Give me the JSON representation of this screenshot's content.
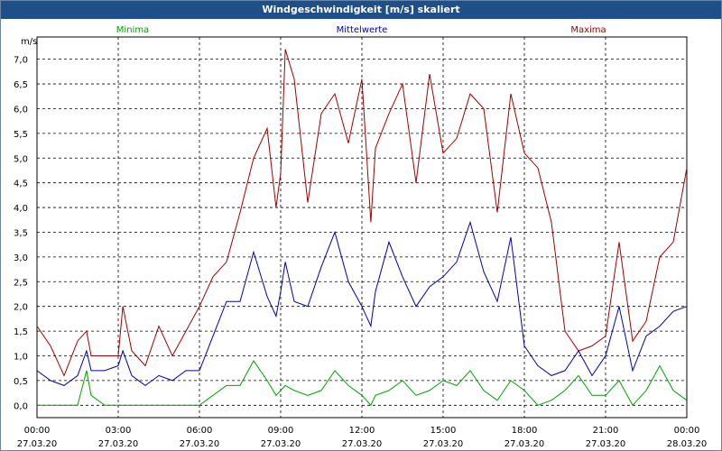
{
  "chart_data": {
    "type": "line",
    "title": "Windgeschwindigkeit [m/s] skaliert",
    "ylabel": "m/s",
    "ylim": [
      -0.25,
      7.45
    ],
    "xlim": [
      0,
      24
    ],
    "y_ticks": [
      0.0,
      0.5,
      1.0,
      1.5,
      2.0,
      2.5,
      3.0,
      3.5,
      4.0,
      4.5,
      5.0,
      5.5,
      6.0,
      6.5,
      7.0
    ],
    "y_tick_labels": [
      "0,0",
      "0,5",
      "1,0",
      "1,5",
      "2,0",
      "2,5",
      "3,0",
      "3,5",
      "4,0",
      "4,5",
      "5,0",
      "5,5",
      "6,0",
      "6,5",
      "7,0"
    ],
    "x_ticks": [
      0,
      3,
      6,
      9,
      12,
      15,
      18,
      21,
      24
    ],
    "x_tick_labels": [
      [
        "00:00",
        "27.03.20"
      ],
      [
        "03:00",
        "27.03.20"
      ],
      [
        "06:00",
        "27.03.20"
      ],
      [
        "09:00",
        "27.03.20"
      ],
      [
        "12:00",
        "27.03.20"
      ],
      [
        "15:00",
        "27.03.20"
      ],
      [
        "18:00",
        "27.03.20"
      ],
      [
        "21:00",
        "27.03.20"
      ],
      [
        "00:00",
        "28.03.20"
      ]
    ],
    "legend": [
      "Minima",
      "Mittelwerte",
      "Maxima"
    ],
    "grid": true,
    "x": [
      0,
      0.5,
      1,
      1.5,
      1.83,
      2,
      2.5,
      3,
      3.17,
      3.5,
      4,
      4.5,
      5,
      5.5,
      6,
      6.5,
      7,
      7.5,
      8,
      8.5,
      8.83,
      9,
      9.17,
      9.5,
      10,
      10.5,
      11,
      11.5,
      12,
      12.33,
      12.5,
      13,
      13.5,
      14,
      14.5,
      15,
      15.5,
      16,
      16.5,
      17,
      17.5,
      18,
      18.5,
      19,
      19.5,
      20,
      20.5,
      21,
      21.5,
      22,
      22.5,
      23,
      23.5,
      24
    ],
    "series": [
      {
        "name": "Maxima",
        "color": "#a00000",
        "values": [
          1.6,
          1.2,
          0.6,
          1.3,
          1.5,
          1.0,
          1.0,
          1.0,
          2.0,
          1.1,
          0.8,
          1.6,
          1.0,
          1.5,
          2.0,
          2.6,
          2.9,
          3.9,
          5.0,
          5.6,
          4.0,
          4.7,
          7.2,
          6.6,
          4.1,
          5.9,
          6.3,
          5.3,
          6.6,
          3.7,
          5.2,
          5.9,
          6.5,
          4.5,
          6.7,
          5.1,
          5.4,
          6.3,
          6.0,
          3.9,
          6.3,
          5.1,
          4.8,
          3.7,
          1.5,
          1.1,
          1.2,
          1.4,
          3.3,
          1.3,
          1.7,
          3.0,
          3.3,
          4.8
        ]
      },
      {
        "name": "Mittelwerte",
        "color": "#0000b0",
        "values": [
          0.7,
          0.5,
          0.4,
          0.6,
          1.1,
          0.7,
          0.7,
          0.8,
          1.1,
          0.6,
          0.4,
          0.6,
          0.5,
          0.7,
          0.7,
          1.4,
          2.1,
          2.1,
          3.1,
          2.2,
          1.8,
          2.3,
          2.9,
          2.1,
          2.0,
          2.8,
          3.5,
          2.5,
          2.0,
          1.6,
          2.3,
          3.3,
          2.6,
          2.0,
          2.4,
          2.6,
          2.9,
          3.7,
          2.7,
          2.1,
          3.4,
          1.2,
          0.8,
          0.6,
          0.7,
          1.1,
          0.6,
          1.0,
          2.0,
          0.7,
          1.4,
          1.6,
          1.9,
          2.0
        ]
      },
      {
        "name": "Minima",
        "color": "#00a000",
        "values": [
          0.0,
          0.0,
          0.0,
          0.0,
          0.7,
          0.2,
          0.0,
          0.0,
          0.0,
          0.0,
          0.0,
          0.0,
          0.0,
          0.0,
          0.0,
          0.2,
          0.4,
          0.4,
          0.9,
          0.5,
          0.2,
          0.3,
          0.4,
          0.3,
          0.2,
          0.3,
          0.7,
          0.4,
          0.2,
          0.0,
          0.2,
          0.3,
          0.5,
          0.2,
          0.3,
          0.5,
          0.4,
          0.7,
          0.3,
          0.1,
          0.5,
          0.3,
          0.0,
          0.1,
          0.3,
          0.6,
          0.2,
          0.2,
          0.5,
          0.0,
          0.3,
          0.8,
          0.3,
          0.1
        ]
      }
    ]
  }
}
